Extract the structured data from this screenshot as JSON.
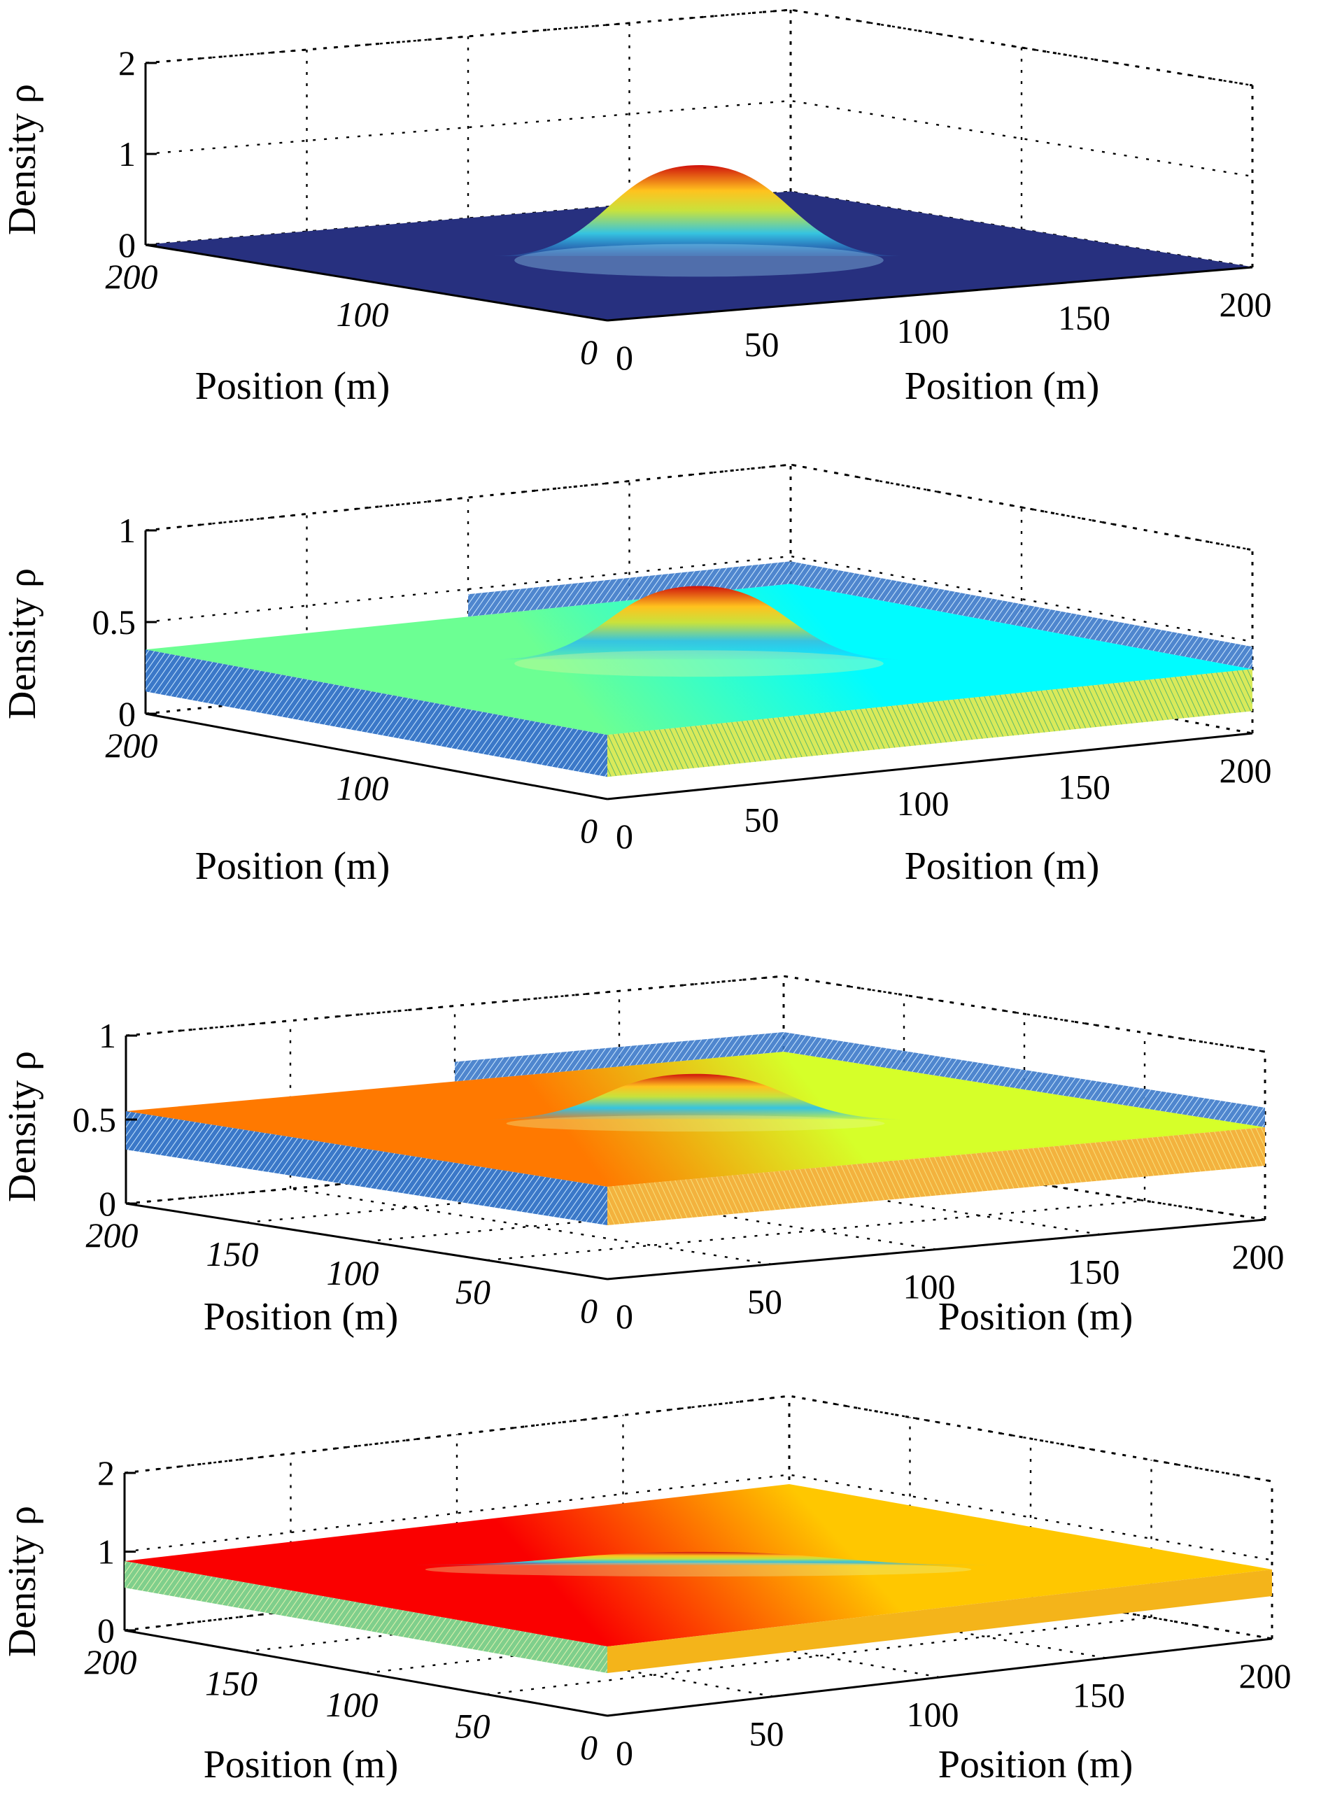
{
  "chart_data": [
    {
      "type": "surface",
      "zlabel": "Density ρ",
      "xlabel": "Position (m)",
      "ylabel": "Position (m)",
      "xlim": [
        0,
        200
      ],
      "ylim": [
        0,
        200
      ],
      "zlim": [
        0,
        2
      ],
      "x_ticks": [
        "0",
        "50",
        "100",
        "150",
        "200"
      ],
      "y_ticks": [
        "0",
        "100",
        "200"
      ],
      "z_ticks": [
        "0",
        "1",
        "2"
      ],
      "grid": true,
      "base_density": 0.0,
      "peak_density": 1.0,
      "peak_center": [
        100,
        100
      ],
      "peak_radius_m": 20,
      "edge_walls": false,
      "colormap": "jet"
    },
    {
      "type": "surface",
      "zlabel": "Density ρ",
      "xlabel": "Position (m)",
      "ylabel": "Position (m)",
      "xlim": [
        0,
        200
      ],
      "ylim": [
        0,
        200
      ],
      "zlim": [
        0,
        1
      ],
      "x_ticks": [
        "0",
        "50",
        "100",
        "150",
        "200"
      ],
      "y_ticks": [
        "0",
        "100",
        "200"
      ],
      "z_ticks": [
        "0",
        "0.5",
        "1"
      ],
      "grid": true,
      "base_density": 0.35,
      "peak_density": 0.75,
      "peak_center": [
        100,
        100
      ],
      "peak_radius_m": 20,
      "edge_walls": true,
      "colormap": "jet"
    },
    {
      "type": "surface",
      "zlabel": "Density ρ",
      "xlabel": "Position (m)",
      "ylabel": "Position (m)",
      "xlim": [
        0,
        200
      ],
      "ylim": [
        0,
        200
      ],
      "zlim": [
        0,
        1
      ],
      "x_ticks": [
        "0",
        "50",
        "100",
        "150",
        "200"
      ],
      "y_ticks": [
        "0",
        "50",
        "100",
        "150",
        "200"
      ],
      "z_ticks": [
        "0",
        "0.5",
        "1"
      ],
      "grid": true,
      "base_density": 0.55,
      "peak_density": 0.82,
      "peak_center": [
        100,
        100
      ],
      "peak_radius_m": 20,
      "edge_walls": true,
      "colormap": "jet"
    },
    {
      "type": "surface",
      "zlabel": "Density ρ",
      "xlabel": "Position (m)",
      "ylabel": "Position (m)",
      "xlim": [
        0,
        200
      ],
      "ylim": [
        0,
        200
      ],
      "zlim": [
        0,
        2
      ],
      "x_ticks": [
        "0",
        "50",
        "100",
        "150",
        "200"
      ],
      "y_ticks": [
        "0",
        "50",
        "100",
        "150",
        "200"
      ],
      "z_ticks": [
        "0",
        "1",
        "2"
      ],
      "grid": true,
      "base_density": 0.88,
      "peak_density": 1.05,
      "peak_center": [
        100,
        100
      ],
      "peak_radius_m": 30,
      "edge_walls": true,
      "colormap": "jet"
    }
  ]
}
